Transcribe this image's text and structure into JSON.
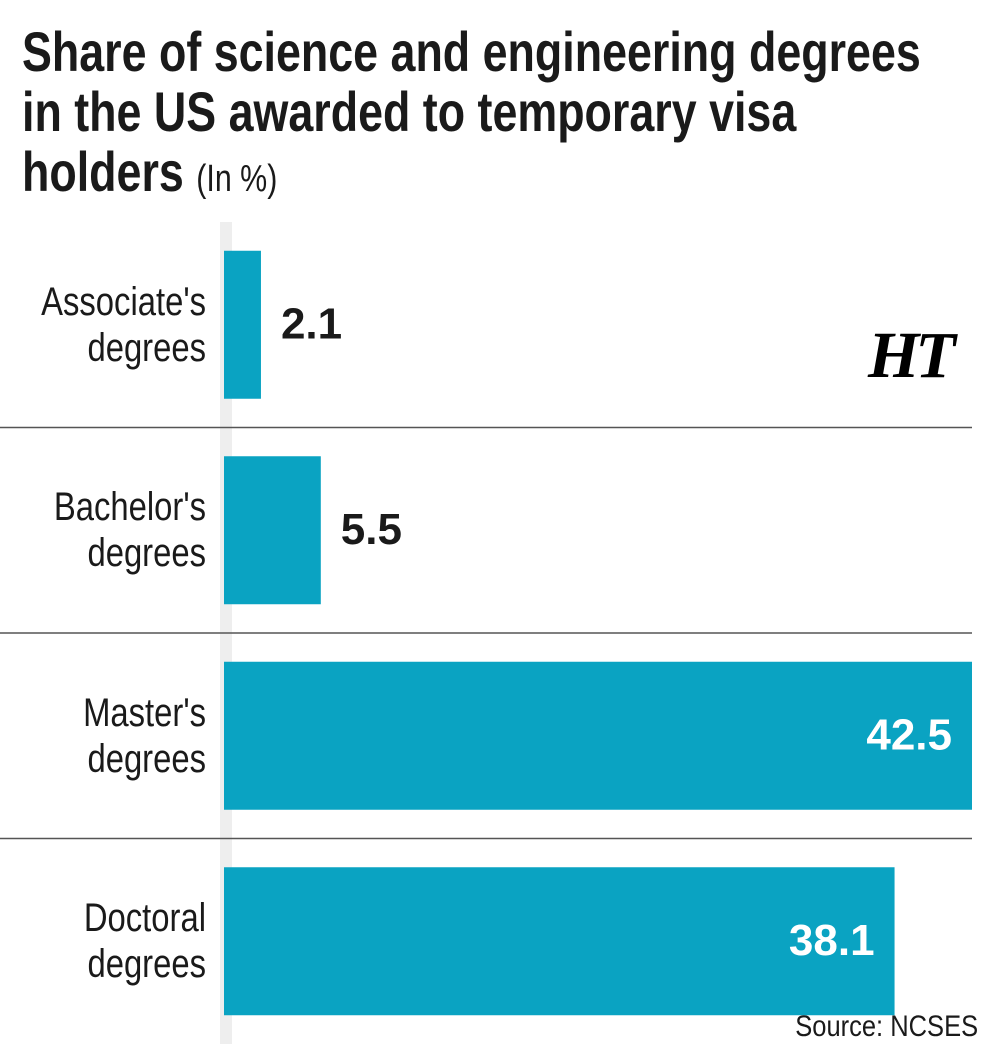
{
  "chart_data": {
    "type": "bar",
    "orientation": "horizontal",
    "title": "Share of science and engineering degrees in the US awarded to temporary visa holders",
    "subtitle": "(In %)",
    "categories": [
      "Associate's degrees",
      "Bachelor's degrees",
      "Master's degrees",
      "Doctoral degrees"
    ],
    "values": [
      2.1,
      5.5,
      42.5,
      38.1
    ],
    "color": "#0aa3c2",
    "logo": "HT",
    "source": "Source: NCSES"
  }
}
